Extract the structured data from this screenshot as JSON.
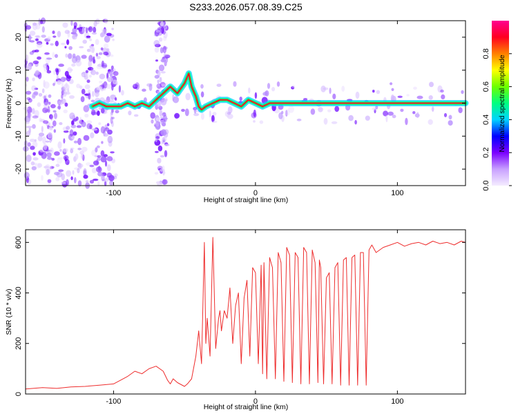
{
  "title": "S233.2026.057.08.39.C25",
  "chart_data": [
    {
      "type": "heatmap",
      "xlabel": "Height of straight line (km)",
      "ylabel": "Frequency (Hz)",
      "xlim": [
        -162,
        148
      ],
      "ylim": [
        -25,
        25
      ],
      "xticks": [
        -100,
        0,
        100
      ],
      "yticks": [
        -20,
        -10,
        0,
        10,
        20
      ],
      "grid": false,
      "ridge_line": {
        "x": [
          -115,
          -110,
          -105,
          -100,
          -95,
          -90,
          -85,
          -80,
          -75,
          -70,
          -65,
          -60,
          -55,
          -50,
          -47,
          -45,
          -42,
          -40,
          -38,
          -35,
          -30,
          -25,
          -20,
          -15,
          -10,
          -5,
          0,
          5,
          10,
          20,
          40,
          60,
          80,
          100,
          120,
          148
        ],
        "y": [
          -1,
          0,
          -1,
          -1,
          -1,
          0,
          -1,
          0,
          -1,
          1,
          3,
          5,
          3,
          6,
          9,
          5,
          2,
          -1,
          -2,
          -1,
          0,
          1,
          1,
          0,
          -1,
          1,
          0,
          -1,
          0,
          0,
          0,
          0,
          0,
          0,
          0,
          0
        ]
      },
      "colorbar": {
        "label": "Normalized spectral amplitude",
        "range": [
          0,
          1
        ],
        "ticks": [
          0.0,
          0.2,
          0.4,
          0.6,
          0.8
        ],
        "colors": [
          "#f4ecff",
          "#c8a0ff",
          "#7a00ff",
          "#0000ff",
          "#00d4ff",
          "#00ff80",
          "#6cff00",
          "#ffff00",
          "#ff8000",
          "#ff0020",
          "#ff0090"
        ]
      }
    },
    {
      "type": "line",
      "xlabel": "Height of straight line (km)",
      "ylabel": "SNR (10 * v/v)",
      "xlim": [
        -162,
        148
      ],
      "ylim": [
        0,
        650
      ],
      "xticks": [
        -100,
        0,
        100
      ],
      "yticks": [
        0,
        200,
        400,
        600
      ],
      "grid": false,
      "color": "#ee2c2c",
      "series": [
        {
          "x": [
            -162,
            -150,
            -140,
            -130,
            -120,
            -110,
            -100,
            -95,
            -90,
            -85,
            -80,
            -75,
            -70,
            -65,
            -62,
            -60,
            -58,
            -55,
            -50,
            -48,
            -45,
            -42,
            -40,
            -38,
            -36,
            -35,
            -34,
            -32,
            -30,
            -28,
            -26,
            -25,
            -24,
            -22,
            -20,
            -18,
            -16,
            -14,
            -12,
            -10,
            -8,
            -6,
            -4,
            -2,
            0,
            2,
            4,
            5,
            6,
            8,
            10,
            12,
            14,
            16,
            18,
            20,
            22,
            24,
            26,
            28,
            30,
            32,
            34,
            36,
            38,
            40,
            42,
            44,
            45,
            46,
            48,
            50,
            52,
            54,
            56,
            58,
            60,
            62,
            64,
            66,
            68,
            70,
            72,
            74,
            76,
            78,
            80,
            82,
            85,
            90,
            95,
            100,
            105,
            110,
            115,
            120,
            125,
            130,
            135,
            140,
            145,
            148
          ],
          "y": [
            20,
            25,
            22,
            28,
            30,
            35,
            40,
            55,
            70,
            90,
            80,
            100,
            110,
            90,
            55,
            40,
            60,
            45,
            30,
            40,
            60,
            150,
            250,
            120,
            600,
            200,
            300,
            150,
            620,
            180,
            300,
            330,
            250,
            330,
            300,
            420,
            200,
            350,
            400,
            120,
            380,
            450,
            150,
            500,
            480,
            120,
            510,
            80,
            520,
            60,
            540,
            500,
            60,
            560,
            520,
            50,
            580,
            550,
            45,
            560,
            540,
            40,
            580,
            560,
            40,
            570,
            520,
            45,
            530,
            500,
            40,
            460,
            480,
            40,
            500,
            520,
            35,
            530,
            540,
            35,
            540,
            550,
            35,
            560,
            560,
            35,
            570,
            590,
            560,
            580,
            590,
            600,
            585,
            595,
            600,
            590,
            605,
            595,
            600,
            590,
            605,
            600
          ]
        }
      ]
    }
  ]
}
